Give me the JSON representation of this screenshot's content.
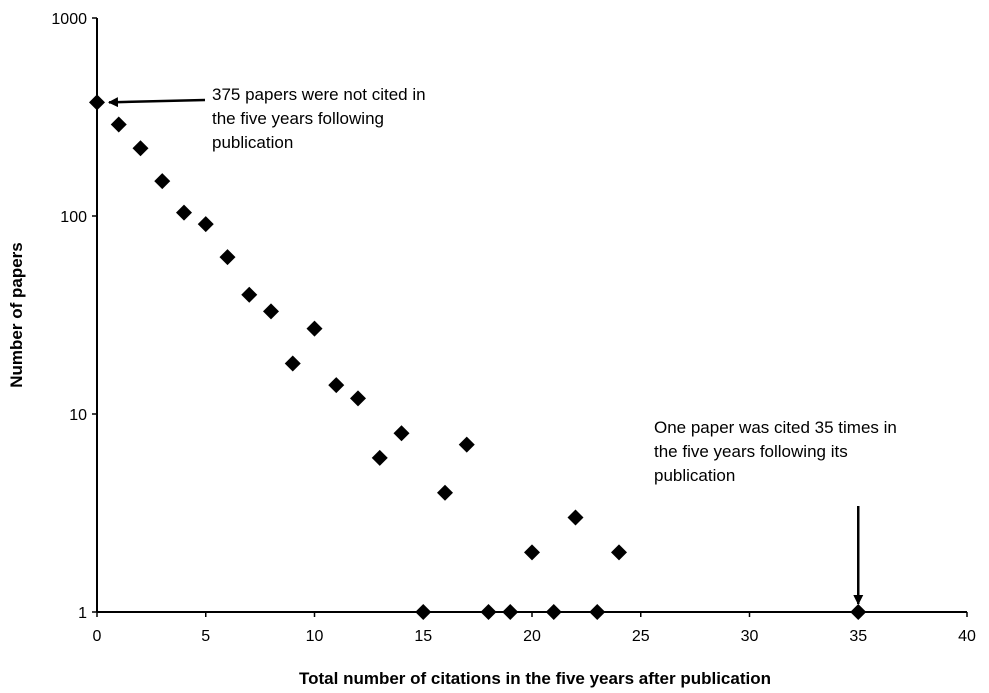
{
  "chart_data": {
    "type": "scatter",
    "xlabel": "Total number of citations in the five years after publication",
    "ylabel": "Number of papers",
    "xlim": [
      0,
      40
    ],
    "ylim": [
      1,
      1000
    ],
    "yscale": "log",
    "grid": false,
    "legend": "none",
    "x_ticks": [
      "0",
      "5",
      "10",
      "15",
      "20",
      "25",
      "30",
      "35",
      "40"
    ],
    "y_ticks": [
      "1",
      "10",
      "100",
      "1000"
    ],
    "points": [
      {
        "x": 0,
        "y": 375
      },
      {
        "x": 1,
        "y": 290
      },
      {
        "x": 2,
        "y": 220
      },
      {
        "x": 3,
        "y": 150
      },
      {
        "x": 4,
        "y": 104
      },
      {
        "x": 5,
        "y": 91
      },
      {
        "x": 6,
        "y": 62
      },
      {
        "x": 7,
        "y": 40
      },
      {
        "x": 8,
        "y": 33
      },
      {
        "x": 9,
        "y": 18
      },
      {
        "x": 10,
        "y": 27
      },
      {
        "x": 11,
        "y": 14
      },
      {
        "x": 12,
        "y": 12
      },
      {
        "x": 13,
        "y": 6
      },
      {
        "x": 14,
        "y": 8
      },
      {
        "x": 15,
        "y": 1
      },
      {
        "x": 16,
        "y": 4
      },
      {
        "x": 17,
        "y": 7
      },
      {
        "x": 18,
        "y": 1
      },
      {
        "x": 19,
        "y": 1
      },
      {
        "x": 20,
        "y": 2
      },
      {
        "x": 21,
        "y": 1
      },
      {
        "x": 22,
        "y": 3
      },
      {
        "x": 23,
        "y": 1
      },
      {
        "x": 24,
        "y": 2
      },
      {
        "x": 35,
        "y": 1
      }
    ],
    "marker": "diamond",
    "marker_color": "#000000",
    "annotations": [
      {
        "lines": [
          "375 papers were not cited in",
          "the five years following",
          "publication"
        ],
        "arrow_to": {
          "x": 0,
          "y": 375
        }
      },
      {
        "lines": [
          "One paper was cited 35 times in",
          "the five years following its",
          "publication"
        ],
        "arrow_to": {
          "x": 35,
          "y": 1
        }
      }
    ]
  }
}
